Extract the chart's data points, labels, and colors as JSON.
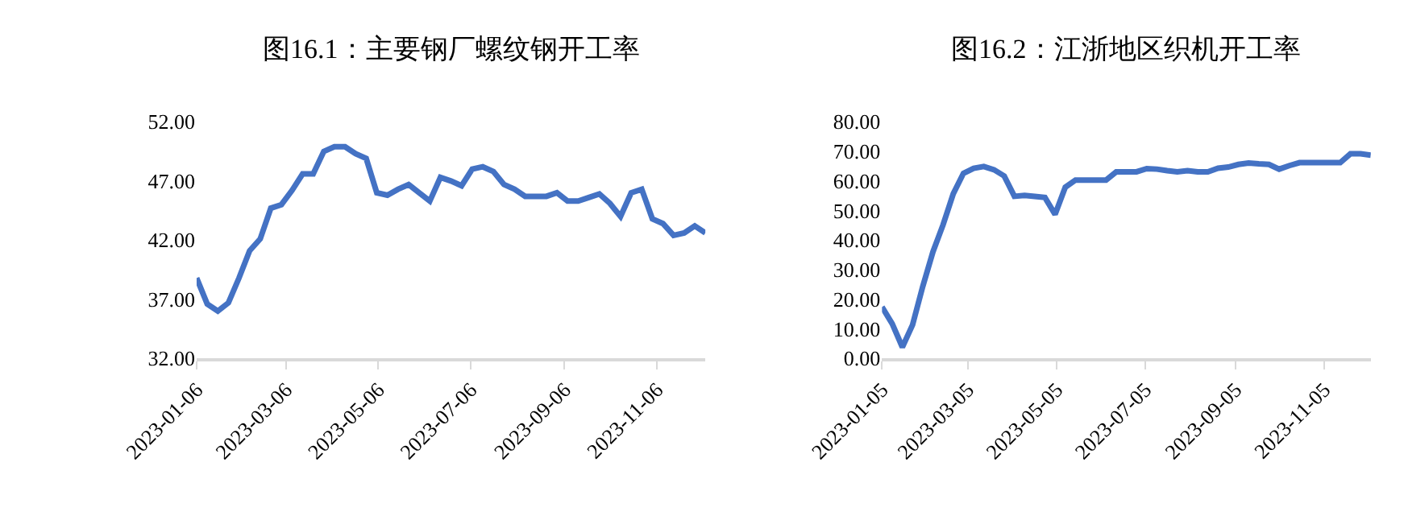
{
  "chart_data": [
    {
      "type": "line",
      "title": "图16.1：主要钢厂螺纹钢开工率",
      "x": [
        "2023-01-06",
        "2023-01-13",
        "2023-01-20",
        "2023-01-27",
        "2023-02-03",
        "2023-02-10",
        "2023-02-17",
        "2023-02-24",
        "2023-03-03",
        "2023-03-10",
        "2023-03-17",
        "2023-03-24",
        "2023-03-31",
        "2023-04-07",
        "2023-04-14",
        "2023-04-21",
        "2023-04-28",
        "2023-05-05",
        "2023-05-12",
        "2023-05-19",
        "2023-05-26",
        "2023-06-02",
        "2023-06-09",
        "2023-06-16",
        "2023-06-23",
        "2023-06-30",
        "2023-07-07",
        "2023-07-14",
        "2023-07-21",
        "2023-07-28",
        "2023-08-04",
        "2023-08-11",
        "2023-08-18",
        "2023-08-25",
        "2023-09-01",
        "2023-09-08",
        "2023-09-15",
        "2023-09-22",
        "2023-09-29",
        "2023-10-06",
        "2023-10-13",
        "2023-10-20",
        "2023-10-27",
        "2023-11-03",
        "2023-11-10",
        "2023-11-17",
        "2023-11-24",
        "2023-12-01",
        "2023-12-08"
      ],
      "series": [
        {
          "color": "#4472c4",
          "values": [
            38.8,
            36.6,
            36.0,
            36.7,
            38.8,
            41.1,
            42.1,
            44.7,
            45.0,
            46.2,
            47.6,
            47.6,
            49.5,
            49.9,
            49.9,
            49.3,
            48.9,
            46.0,
            45.8,
            46.3,
            46.7,
            46.0,
            45.3,
            47.3,
            47.0,
            46.6,
            48.0,
            48.2,
            47.8,
            46.7,
            46.3,
            45.7,
            45.7,
            45.7,
            46.0,
            45.3,
            45.3,
            45.6,
            45.9,
            45.1,
            44.0,
            46.0,
            46.3,
            43.8,
            43.4,
            42.4,
            42.6,
            43.2,
            42.6
          ]
        }
      ],
      "xlim": [
        "2023-01-06",
        "2023-12-08"
      ],
      "xticks": [
        "2023-01-06",
        "2023-03-06",
        "2023-05-06",
        "2023-07-06",
        "2023-09-06",
        "2023-11-06"
      ],
      "ylim": [
        32,
        52
      ],
      "yticks": [
        {
          "value": 32,
          "label": "32.00"
        },
        {
          "value": 37,
          "label": "37.00"
        },
        {
          "value": 42,
          "label": "42.00"
        },
        {
          "value": 47,
          "label": "47.00"
        },
        {
          "value": 52,
          "label": "52.00"
        }
      ],
      "grid": false,
      "legend": false,
      "marker": "none",
      "line_style": "solid"
    },
    {
      "type": "line",
      "title": "图16.2：江浙地区织机开工率",
      "x": [
        "2023-01-05",
        "2023-01-12",
        "2023-01-19",
        "2023-01-26",
        "2023-02-02",
        "2023-02-09",
        "2023-02-16",
        "2023-02-23",
        "2023-03-02",
        "2023-03-09",
        "2023-03-16",
        "2023-03-23",
        "2023-03-30",
        "2023-04-06",
        "2023-04-13",
        "2023-04-20",
        "2023-04-27",
        "2023-05-04",
        "2023-05-11",
        "2023-05-18",
        "2023-05-25",
        "2023-06-01",
        "2023-06-08",
        "2023-06-15",
        "2023-06-22",
        "2023-06-29",
        "2023-07-06",
        "2023-07-13",
        "2023-07-20",
        "2023-07-27",
        "2023-08-03",
        "2023-08-10",
        "2023-08-17",
        "2023-08-24",
        "2023-08-31",
        "2023-09-07",
        "2023-09-14",
        "2023-09-21",
        "2023-09-28",
        "2023-10-05",
        "2023-10-12",
        "2023-10-19",
        "2023-10-26",
        "2023-11-02",
        "2023-11-09",
        "2023-11-16",
        "2023-11-23",
        "2023-11-30",
        "2023-12-07"
      ],
      "series": [
        {
          "color": "#4472c4",
          "values": [
            17.4,
            11.7,
            3.8,
            11.3,
            24.3,
            36.0,
            45.2,
            55.7,
            62.6,
            64.3,
            64.9,
            63.8,
            61.7,
            54.8,
            55.1,
            54.8,
            54.4,
            48.7,
            57.9,
            60.3,
            60.3,
            60.3,
            60.3,
            63.1,
            63.1,
            63.1,
            64.2,
            64.0,
            63.5,
            63.1,
            63.5,
            63.1,
            63.1,
            64.3,
            64.7,
            65.6,
            66.1,
            65.8,
            65.6,
            64.0,
            65.2,
            66.2,
            66.2,
            66.2,
            66.2,
            66.2,
            69.2,
            69.2,
            68.7
          ]
        }
      ],
      "xlim": [
        "2023-01-05",
        "2023-12-07"
      ],
      "xticks": [
        "2023-01-05",
        "2023-03-05",
        "2023-05-05",
        "2023-07-05",
        "2023-09-05",
        "2023-11-05"
      ],
      "ylim": [
        0,
        80
      ],
      "yticks": [
        {
          "value": 0,
          "label": "0.00"
        },
        {
          "value": 10,
          "label": "10.00"
        },
        {
          "value": 20,
          "label": "20.00"
        },
        {
          "value": 30,
          "label": "30.00"
        },
        {
          "value": 40,
          "label": "40.00"
        },
        {
          "value": 50,
          "label": "50.00"
        },
        {
          "value": 60,
          "label": "60.00"
        },
        {
          "value": 70,
          "label": "70.00"
        },
        {
          "value": 80,
          "label": "80.00"
        }
      ],
      "grid": false,
      "legend": false,
      "marker": "none",
      "line_style": "solid"
    }
  ]
}
